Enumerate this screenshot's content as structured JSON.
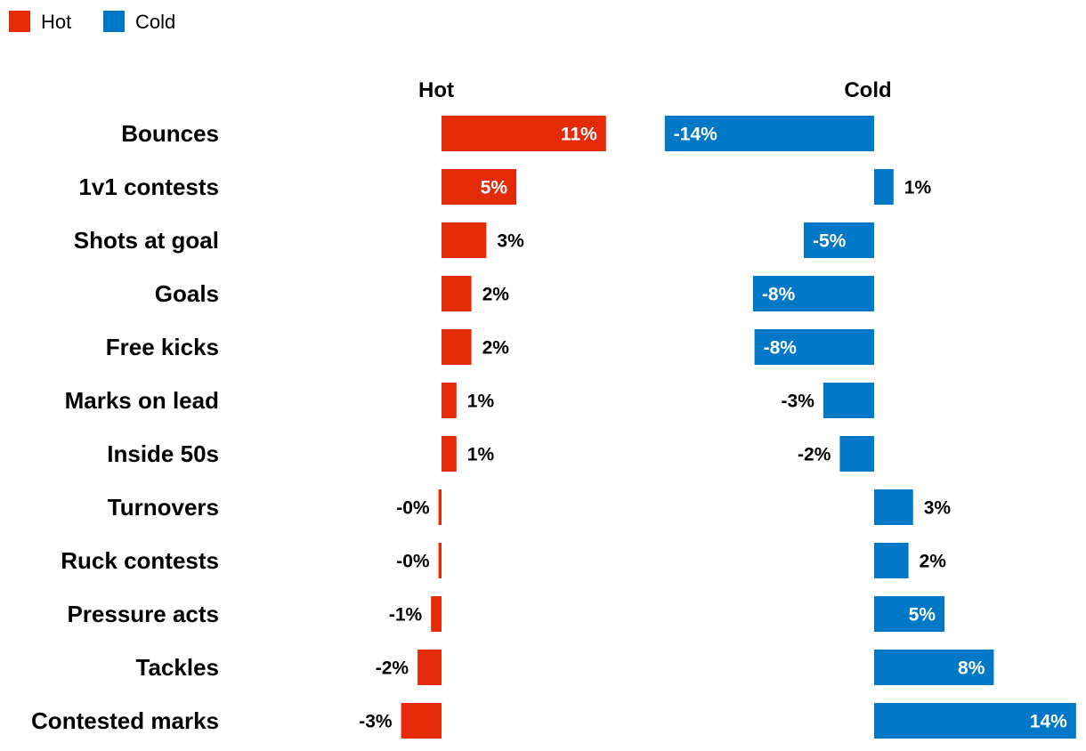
{
  "legend": [
    {
      "label": "Hot",
      "color": "#E52A0A"
    },
    {
      "label": "Cold",
      "color": "#0078C8"
    }
  ],
  "chart_data": {
    "type": "bar",
    "orientation": "horizontal",
    "layout": "two-panel diverging",
    "legend_placement": "top-left",
    "grid": false,
    "categories": [
      "Bounces",
      "1v1 contests",
      "Shots at goal",
      "Goals",
      "Free kicks",
      "Marks on lead",
      "Inside 50s",
      "Turnovers",
      "Ruck contests",
      "Pressure acts",
      "Tackles",
      "Contested marks"
    ],
    "series": [
      {
        "name": "Hot",
        "color": "#E52A0A",
        "values": [
          11,
          5,
          3,
          2,
          2,
          1,
          1,
          -0.2,
          -0.2,
          -0.7,
          -1.6,
          -2.7
        ],
        "labels": [
          "11%",
          "5%",
          "3%",
          "2%",
          "2%",
          "1%",
          "1%",
          "-0%",
          "-0%",
          "-1%",
          "-2%",
          "-3%"
        ]
      },
      {
        "name": "Cold",
        "color": "#0078C8",
        "values": [
          -14,
          1.3,
          -4.7,
          -8.1,
          -8,
          -3.4,
          -2.3,
          2.6,
          2.3,
          4.7,
          8,
          13.5
        ],
        "labels": [
          "-14%",
          "1%",
          "-5%",
          "-8%",
          "-8%",
          "-3%",
          "-2%",
          "3%",
          "2%",
          "5%",
          "8%",
          "14%"
        ]
      }
    ],
    "units": "%"
  }
}
